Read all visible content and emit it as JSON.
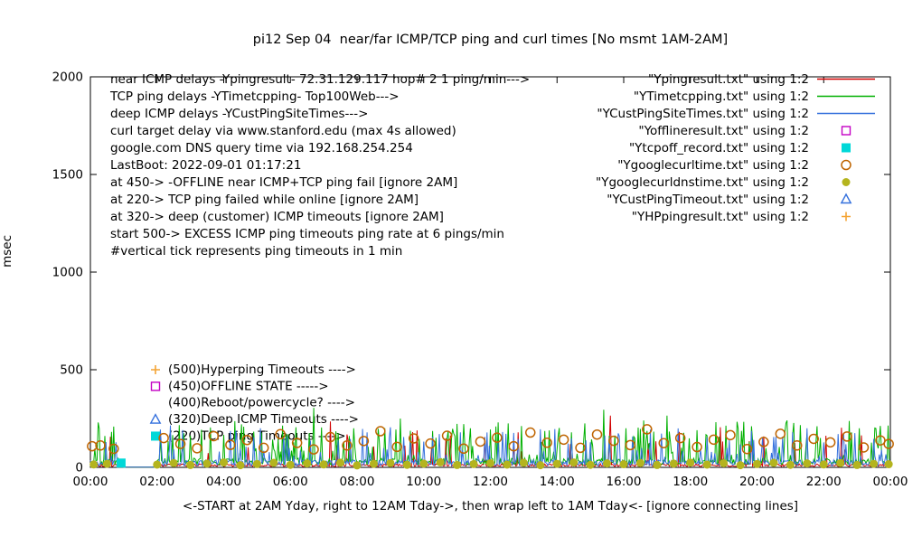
{
  "chart_data": {
    "type": "line",
    "title": "pi12 Sep 04  near/far ICMP/TCP ping and curl times [No msmt 1AM-2AM]",
    "ylabel": "msec",
    "xlabel": "<-START at 2AM Yday, right to 12AM Tday->, then wrap left to 1AM Tday<- [ignore connecting lines]",
    "xlim": [
      0,
      24
    ],
    "ylim": [
      0,
      2000
    ],
    "x_tick_hours": [
      0,
      2,
      4,
      6,
      8,
      10,
      12,
      14,
      16,
      18,
      20,
      22,
      24
    ],
    "x_tick_labels": [
      "00:00",
      "02:00",
      "04:00",
      "06:00",
      "08:00",
      "10:00",
      "12:00",
      "14:00",
      "16:00",
      "18:00",
      "20:00",
      "22:00",
      "00:00"
    ],
    "y_ticks": [
      0,
      500,
      1000,
      1500,
      2000
    ],
    "grid": false,
    "legend_position": "top-right",
    "no_measurement_gap_hours": [
      1,
      2
    ],
    "info_lines": [
      "near ICMP delays -Ypingresult- 72.31.129.117 hop# 2 1 ping/min--->",
      "TCP ping delays -YTimetcpping- Top100Web--->",
      "deep ICMP delays -YCustPingSiteTimes--->",
      "curl target delay via www.stanford.edu (max 4s allowed)",
      "google.com DNS query time via 192.168.254.254",
      "LastBoot: 2022-09-01 01:17:21",
      "at 450-> -OFFLINE near ICMP+TCP ping fail [ignore 2AM]",
      "at 220-> TCP ping failed while online [ignore 2AM]",
      "at 320-> deep (customer) ICMP timeouts [ignore 2AM]",
      "start 500-> EXCESS ICMP ping timeouts ping rate at 6 pings/min",
      "       #vertical tick represents ping timeouts in 1 min"
    ],
    "level_annotations": [
      {
        "text": "(500)Hyperping Timeouts ---->",
        "y": 500,
        "marker": "plus",
        "color": "#f4a434"
      },
      {
        "text": "(450)OFFLINE STATE ----->",
        "y": 415,
        "marker": "open-square",
        "color": "#c400c4"
      },
      {
        "text": "(400)Reboot/powercycle? ---->",
        "y": 330,
        "marker": null,
        "color": null
      },
      {
        "text": "(320)Deep ICMP Timeouts ---->",
        "y": 245,
        "marker": "open-triangle",
        "color": "#3470dd"
      },
      {
        "text": "(220)TCP ping Timeouts ---->",
        "y": 160,
        "marker": "filled-square",
        "color": "#00d8d8"
      }
    ],
    "legend": [
      {
        "label": "\"Ypingresult.txt\" using 1:2",
        "type": "line",
        "marker": null,
        "color": "#d00000"
      },
      {
        "label": "\"YTimetcpping.txt\" using 1:2",
        "type": "line",
        "marker": null,
        "color": "#00b000"
      },
      {
        "label": "\"YCustPingSiteTimes.txt\" using 1:2",
        "type": "line",
        "marker": null,
        "color": "#3470dd"
      },
      {
        "label": "\"Yofflineresult.txt\" using 1:2",
        "type": "marker",
        "marker": "open-square",
        "color": "#c400c4"
      },
      {
        "label": "\"Ytcpoff_record.txt\" using 1:2",
        "type": "marker",
        "marker": "filled-square",
        "color": "#00d8d8"
      },
      {
        "label": "\"Ygooglecurltime.txt\" using 1:2",
        "type": "marker",
        "marker": "open-circle",
        "color": "#bf6400"
      },
      {
        "label": "\"Ygooglecurldnstime.txt\" using 1:2",
        "type": "marker",
        "marker": "filled-circle",
        "color": "#b4b41e"
      },
      {
        "label": "\"YCustPingTimeout.txt\" using 1:2",
        "type": "marker",
        "marker": "open-triangle",
        "color": "#3470dd"
      },
      {
        "label": "\"YHPpingresult.txt\" using 1:2",
        "type": "marker",
        "marker": "plus",
        "color": "#f4a434"
      }
    ],
    "line_series": [
      {
        "name": "Ypingresult.txt",
        "color": "#d00000",
        "seed": 101,
        "base": 4,
        "jitter": 14,
        "spike_prob": 0.05,
        "spike_min": 60,
        "spike_max": 210,
        "tall_spikes": [
          [
            7.2,
            235
          ],
          [
            15.6,
            265
          ],
          [
            18.9,
            205
          ]
        ]
      },
      {
        "name": "YTimetcpping.txt",
        "color": "#00b000",
        "seed": 202,
        "base": 12,
        "jitter": 35,
        "spike_prob": 0.22,
        "spike_min": 60,
        "spike_max": 240,
        "tall_spikes": [
          [
            6.7,
            305
          ],
          [
            9.3,
            250
          ],
          [
            15.4,
            295
          ],
          [
            17.3,
            265
          ],
          [
            20.9,
            240
          ]
        ]
      },
      {
        "name": "YCustPingSiteTimes.txt",
        "color": "#3470dd",
        "seed": 303,
        "base": 8,
        "jitter": 30,
        "spike_prob": 0.15,
        "spike_min": 50,
        "spike_max": 200,
        "tall_spikes": [
          [
            2.4,
            215
          ],
          [
            5.1,
            200
          ],
          [
            9.0,
            205
          ],
          [
            13.5,
            195
          ],
          [
            21.5,
            200
          ]
        ]
      }
    ],
    "scatter_series": [
      {
        "name": "Yofflineresult.txt",
        "marker": "open-square",
        "color": "#c400c4",
        "points": []
      },
      {
        "name": "Ytcpoff_record.txt",
        "marker": "filled-square",
        "color": "#00d8d8",
        "points": [
          [
            0.92,
            22
          ]
        ]
      },
      {
        "name": "Ygooglecurltime.txt",
        "marker": "open-circle",
        "color": "#bf6400",
        "points": [
          [
            0.05,
            108
          ],
          [
            0.3,
            112
          ],
          [
            0.7,
            95
          ],
          [
            2.2,
            150
          ],
          [
            2.7,
            120
          ],
          [
            3.2,
            98
          ],
          [
            3.7,
            160
          ],
          [
            4.2,
            115
          ],
          [
            4.7,
            140
          ],
          [
            5.2,
            100
          ],
          [
            5.7,
            170
          ],
          [
            6.2,
            125
          ],
          [
            6.7,
            92
          ],
          [
            7.2,
            155
          ],
          [
            7.7,
            112
          ],
          [
            8.2,
            135
          ],
          [
            8.7,
            185
          ],
          [
            9.2,
            105
          ],
          [
            9.7,
            148
          ],
          [
            10.2,
            122
          ],
          [
            10.7,
            162
          ],
          [
            11.2,
            96
          ],
          [
            11.7,
            132
          ],
          [
            12.2,
            152
          ],
          [
            12.7,
            108
          ],
          [
            13.2,
            178
          ],
          [
            13.7,
            126
          ],
          [
            14.2,
            142
          ],
          [
            14.7,
            100
          ],
          [
            15.2,
            168
          ],
          [
            15.7,
            136
          ],
          [
            16.2,
            114
          ],
          [
            16.7,
            195
          ],
          [
            17.2,
            124
          ],
          [
            17.7,
            150
          ],
          [
            18.2,
            104
          ],
          [
            18.7,
            142
          ],
          [
            19.2,
            165
          ],
          [
            19.7,
            94
          ],
          [
            20.2,
            130
          ],
          [
            20.7,
            172
          ],
          [
            21.2,
            112
          ],
          [
            21.7,
            146
          ],
          [
            22.2,
            128
          ],
          [
            22.7,
            158
          ],
          [
            23.2,
            102
          ],
          [
            23.7,
            138
          ],
          [
            23.95,
            120
          ]
        ]
      },
      {
        "name": "Ygooglecurldnstime.txt",
        "marker": "filled-circle",
        "color": "#b4b41e",
        "points": [
          [
            0.1,
            15
          ],
          [
            0.5,
            18
          ],
          [
            2.0,
            14
          ],
          [
            2.5,
            22
          ],
          [
            3.0,
            12
          ],
          [
            3.5,
            19
          ],
          [
            4.0,
            25
          ],
          [
            4.5,
            11
          ],
          [
            5.0,
            17
          ],
          [
            5.5,
            23
          ],
          [
            6.0,
            13
          ],
          [
            6.5,
            20
          ],
          [
            7.0,
            15
          ],
          [
            7.5,
            24
          ],
          [
            8.0,
            10
          ],
          [
            8.5,
            18
          ],
          [
            9.0,
            22
          ],
          [
            9.5,
            13
          ],
          [
            10.0,
            19
          ],
          [
            10.5,
            26
          ],
          [
            11.0,
            12
          ],
          [
            11.5,
            17
          ],
          [
            12.0,
            21
          ],
          [
            12.5,
            14
          ],
          [
            13.0,
            23
          ],
          [
            13.5,
            11
          ],
          [
            14.0,
            18
          ],
          [
            14.5,
            25
          ],
          [
            15.0,
            13
          ],
          [
            15.5,
            20
          ],
          [
            16.0,
            16
          ],
          [
            16.5,
            22
          ],
          [
            17.0,
            12
          ],
          [
            17.5,
            19
          ],
          [
            18.0,
            24
          ],
          [
            18.5,
            14
          ],
          [
            19.0,
            21
          ],
          [
            19.5,
            11
          ],
          [
            20.0,
            17
          ],
          [
            20.5,
            23
          ],
          [
            21.0,
            13
          ],
          [
            21.5,
            20
          ],
          [
            22.0,
            15
          ],
          [
            22.5,
            22
          ],
          [
            23.0,
            12
          ],
          [
            23.5,
            18
          ],
          [
            23.95,
            16
          ]
        ]
      },
      {
        "name": "YCustPingTimeout.txt",
        "marker": "open-triangle",
        "color": "#3470dd",
        "points": []
      },
      {
        "name": "YHPpingresult.txt",
        "marker": "plus",
        "color": "#f4a434",
        "points": []
      }
    ]
  }
}
